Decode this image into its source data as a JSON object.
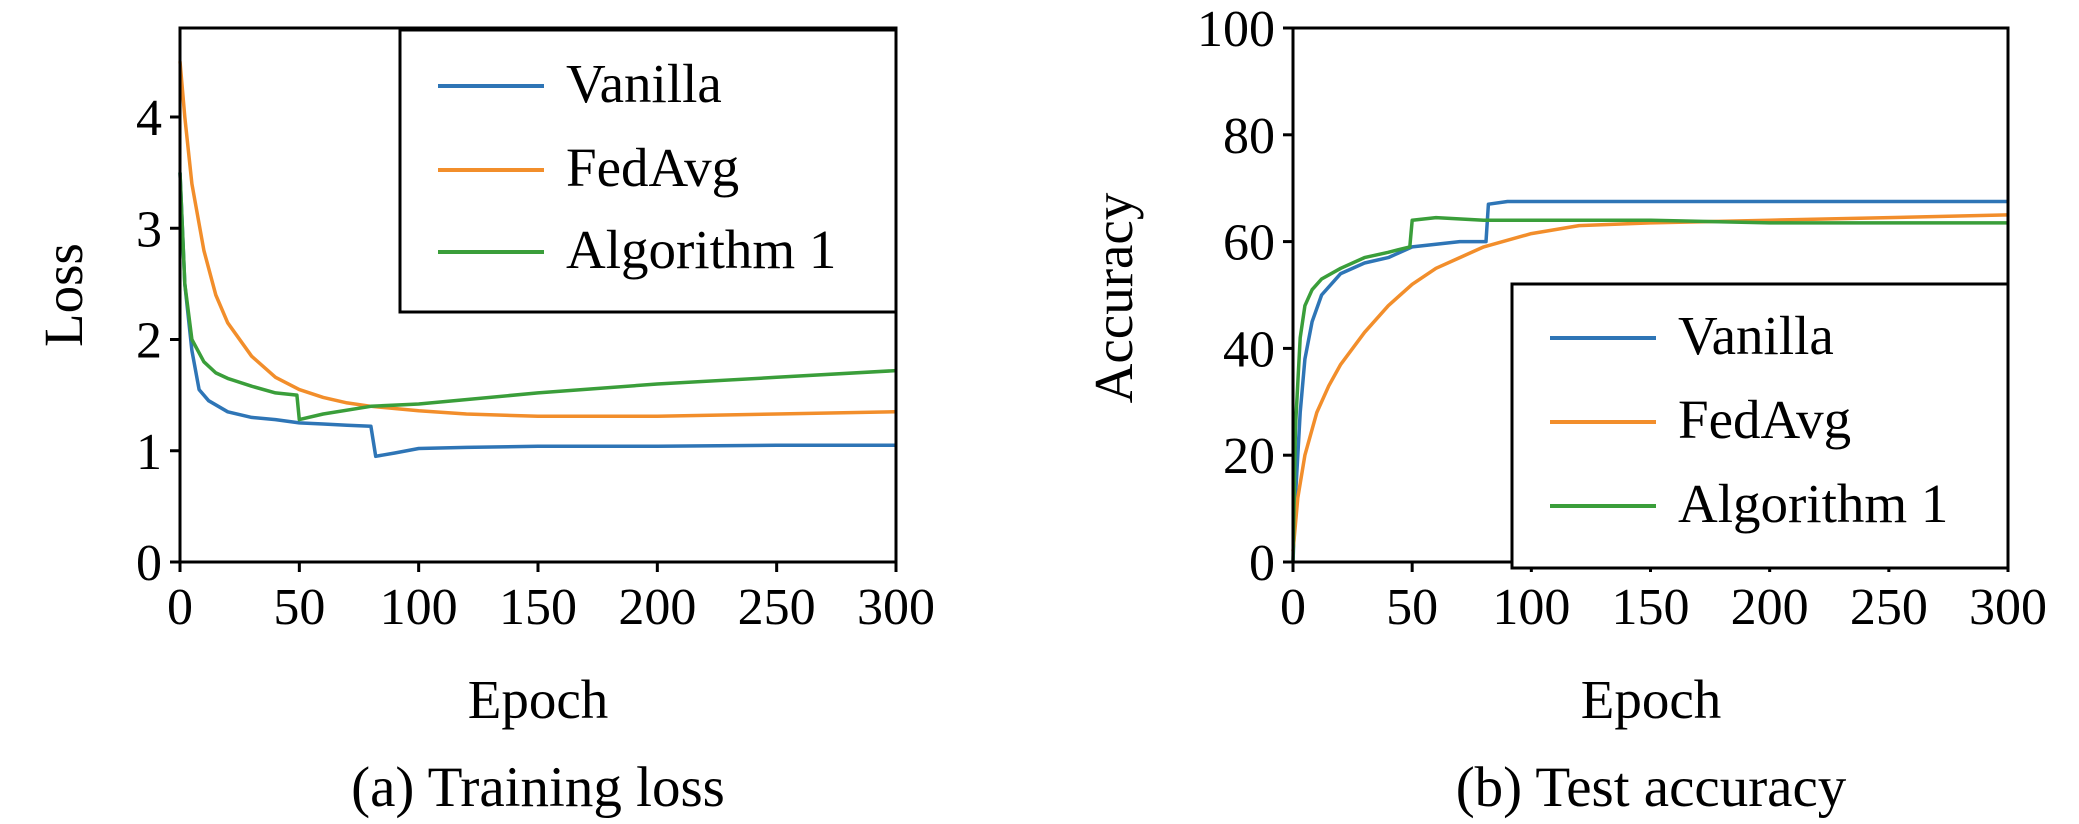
{
  "colors": {
    "Vanilla": "#2e75b6",
    "FedAvg": "#f28e2b",
    "Algorithm 1": "#3a9e3a"
  },
  "chart_data": [
    {
      "type": "line",
      "caption": "(a) Training loss",
      "xlabel": "Epoch",
      "ylabel": "Loss",
      "xlim": [
        0,
        300
      ],
      "ylim": [
        0,
        4.8
      ],
      "xticks": [
        "0",
        "50",
        "100",
        "150",
        "200",
        "250",
        "300"
      ],
      "yticks": [
        "0",
        "1",
        "2",
        "3",
        "4"
      ],
      "legend_position": "top-right",
      "grid": false,
      "series": [
        {
          "name": "Vanilla",
          "x": [
            0,
            2,
            5,
            8,
            12,
            20,
            30,
            40,
            50,
            60,
            70,
            80,
            82,
            90,
            100,
            120,
            150,
            200,
            250,
            300
          ],
          "y": [
            3.5,
            2.5,
            1.9,
            1.55,
            1.45,
            1.35,
            1.3,
            1.28,
            1.25,
            1.24,
            1.23,
            1.22,
            0.95,
            0.98,
            1.02,
            1.03,
            1.04,
            1.04,
            1.05,
            1.05
          ]
        },
        {
          "name": "FedAvg",
          "x": [
            0,
            2,
            5,
            10,
            15,
            20,
            30,
            40,
            50,
            60,
            70,
            80,
            100,
            120,
            150,
            200,
            250,
            300
          ],
          "y": [
            4.5,
            4.0,
            3.4,
            2.8,
            2.4,
            2.15,
            1.85,
            1.66,
            1.55,
            1.48,
            1.43,
            1.4,
            1.36,
            1.33,
            1.31,
            1.31,
            1.33,
            1.35
          ]
        },
        {
          "name": "Algorithm 1",
          "x": [
            0,
            2,
            5,
            10,
            15,
            20,
            30,
            40,
            49,
            50,
            60,
            80,
            100,
            150,
            200,
            250,
            300
          ],
          "y": [
            3.5,
            2.5,
            2.0,
            1.8,
            1.7,
            1.65,
            1.58,
            1.52,
            1.5,
            1.28,
            1.33,
            1.4,
            1.42,
            1.52,
            1.6,
            1.66,
            1.72
          ]
        }
      ]
    },
    {
      "type": "line",
      "caption": "(b) Test accuracy",
      "xlabel": "Epoch",
      "ylabel": "Accuracy",
      "xlim": [
        0,
        300
      ],
      "ylim": [
        0,
        100
      ],
      "xticks": [
        "0",
        "50",
        "100",
        "150",
        "200",
        "250",
        "300"
      ],
      "yticks": [
        "0",
        "20",
        "40",
        "60",
        "80",
        "100"
      ],
      "legend_position": "bottom-right",
      "grid": false,
      "series": [
        {
          "name": "Vanilla",
          "x": [
            0,
            1,
            3,
            5,
            8,
            12,
            20,
            30,
            40,
            50,
            60,
            70,
            81,
            82,
            90,
            100,
            150,
            200,
            250,
            300
          ],
          "y": [
            0,
            12,
            28,
            38,
            45,
            50,
            54,
            56,
            57,
            59,
            59.5,
            60,
            60,
            67,
            67.5,
            67.5,
            67.5,
            67.5,
            67.5,
            67.5
          ]
        },
        {
          "name": "FedAvg",
          "x": [
            0,
            2,
            5,
            10,
            15,
            20,
            30,
            40,
            50,
            60,
            70,
            80,
            100,
            120,
            150,
            200,
            250,
            300
          ],
          "y": [
            2,
            12,
            20,
            28,
            33,
            37,
            43,
            48,
            52,
            55,
            57,
            59,
            61.5,
            63,
            63.5,
            64,
            64.5,
            65
          ]
        },
        {
          "name": "Algorithm 1",
          "x": [
            0,
            1,
            3,
            5,
            8,
            12,
            20,
            30,
            40,
            49,
            50,
            60,
            80,
            100,
            150,
            200,
            250,
            300
          ],
          "y": [
            0,
            25,
            42,
            48,
            51,
            53,
            55,
            57,
            58,
            59,
            64,
            64.5,
            64,
            64,
            64,
            63.5,
            63.5,
            63.5
          ]
        }
      ]
    }
  ]
}
